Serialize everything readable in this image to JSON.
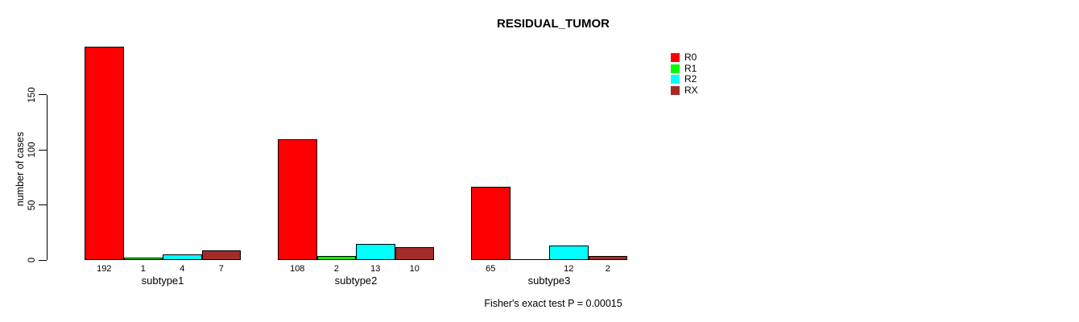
{
  "chart_data": {
    "type": "bar",
    "title": "RESIDUAL_TUMOR",
    "ylabel": "number of cases",
    "xlabel": "",
    "yticks": [
      0,
      50,
      100,
      150
    ],
    "ylim": [
      0,
      195
    ],
    "grid": false,
    "legend_position": "top-right",
    "categories": [
      "subtype1",
      "subtype2",
      "subtype3"
    ],
    "series": [
      {
        "name": "R0",
        "color": "#FF0000",
        "values": [
          192,
          108,
          65
        ]
      },
      {
        "name": "R1",
        "color": "#00FF00",
        "values": [
          1,
          2,
          0
        ]
      },
      {
        "name": "R2",
        "color": "#00FFFF",
        "values": [
          4,
          13,
          12
        ]
      },
      {
        "name": "RX",
        "color": "#A52A2A",
        "values": [
          7,
          10,
          2
        ]
      }
    ],
    "value_labels": [
      [
        "192",
        "1",
        "4",
        "7"
      ],
      [
        "108",
        "2",
        "13",
        "10"
      ],
      [
        "65",
        "",
        "12",
        "2"
      ]
    ],
    "footnote": "Fisher's exact test P = 0.00015"
  }
}
